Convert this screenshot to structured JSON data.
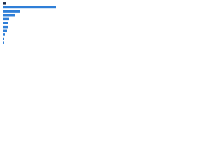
{
  "chart_data": {
    "type": "bar",
    "orientation": "horizontal",
    "categories": [
      null,
      null,
      null,
      null,
      null,
      null,
      null,
      null,
      null,
      null,
      null
    ],
    "values": [
      5,
      77,
      24,
      18,
      9,
      8,
      7,
      6,
      3,
      2,
      2
    ],
    "colors": [
      "#1b2a49",
      "#2f7fd8",
      "#2f7fd8",
      "#2f7fd8",
      "#2f7fd8",
      "#2f7fd8",
      "#2f7fd8",
      "#2f7fd8",
      "#2f7fd8",
      "#2f7fd8",
      "#2f7fd8"
    ],
    "xlim": [
      0,
      80
    ],
    "grid": false
  }
}
